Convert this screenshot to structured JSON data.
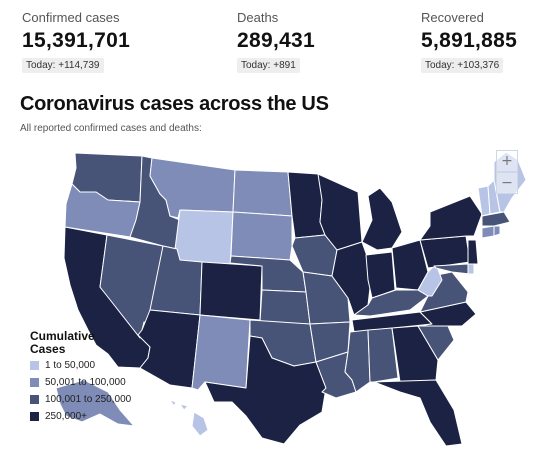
{
  "stats": [
    {
      "label": "Confirmed cases",
      "value": "15,391,701",
      "today": "Today: +114,739"
    },
    {
      "label": "Deaths",
      "value": "289,431",
      "today": "Today: +891"
    },
    {
      "label": "Recovered",
      "value": "5,891,885",
      "today": "Today: +103,376"
    }
  ],
  "map": {
    "title": "Coronavirus cases across the US",
    "subtitle": "All reported confirmed cases and deaths:",
    "zoom_in": "+",
    "zoom_out": "−"
  },
  "legend": {
    "title": "Cumulative\nCases",
    "items": [
      {
        "label": "1 to 50,000",
        "color": "#b7c4e6"
      },
      {
        "label": "50,001 to 100,000",
        "color": "#7e8cb7"
      },
      {
        "label": "100,001 to 250,000",
        "color": "#475478"
      },
      {
        "label": "250,000+",
        "color": "#1b2244"
      }
    ]
  },
  "states": [
    {
      "name": "WA",
      "tier": 3
    },
    {
      "name": "OR",
      "tier": 2
    },
    {
      "name": "CA",
      "tier": 4
    },
    {
      "name": "NV",
      "tier": 3
    },
    {
      "name": "ID",
      "tier": 3
    },
    {
      "name": "MT",
      "tier": 2
    },
    {
      "name": "WY",
      "tier": 1
    },
    {
      "name": "UT",
      "tier": 3
    },
    {
      "name": "AZ",
      "tier": 4
    },
    {
      "name": "CO",
      "tier": 4
    },
    {
      "name": "NM",
      "tier": 2
    },
    {
      "name": "ND",
      "tier": 2
    },
    {
      "name": "SD",
      "tier": 2
    },
    {
      "name": "NE",
      "tier": 3
    },
    {
      "name": "KS",
      "tier": 3
    },
    {
      "name": "OK",
      "tier": 3
    },
    {
      "name": "TX",
      "tier": 4
    },
    {
      "name": "MN",
      "tier": 4
    },
    {
      "name": "IA",
      "tier": 3
    },
    {
      "name": "MO",
      "tier": 3
    },
    {
      "name": "AR",
      "tier": 3
    },
    {
      "name": "LA",
      "tier": 3
    },
    {
      "name": "WI",
      "tier": 4
    },
    {
      "name": "IL",
      "tier": 4
    },
    {
      "name": "MI",
      "tier": 4
    },
    {
      "name": "IN",
      "tier": 4
    },
    {
      "name": "OH",
      "tier": 4
    },
    {
      "name": "KY",
      "tier": 3
    },
    {
      "name": "TN",
      "tier": 4
    },
    {
      "name": "MS",
      "tier": 3
    },
    {
      "name": "AL",
      "tier": 3
    },
    {
      "name": "GA",
      "tier": 4
    },
    {
      "name": "FL",
      "tier": 4
    },
    {
      "name": "SC",
      "tier": 3
    },
    {
      "name": "NC",
      "tier": 4
    },
    {
      "name": "VA",
      "tier": 3
    },
    {
      "name": "WV",
      "tier": 1
    },
    {
      "name": "PA",
      "tier": 4
    },
    {
      "name": "NY",
      "tier": 4
    },
    {
      "name": "NJ",
      "tier": 4
    },
    {
      "name": "MD",
      "tier": 3
    },
    {
      "name": "DE",
      "tier": 1
    },
    {
      "name": "CT",
      "tier": 2
    },
    {
      "name": "MA",
      "tier": 3
    },
    {
      "name": "RI",
      "tier": 2
    },
    {
      "name": "VT",
      "tier": 1
    },
    {
      "name": "NH",
      "tier": 1
    },
    {
      "name": "ME",
      "tier": 1
    },
    {
      "name": "AK",
      "tier": 2
    },
    {
      "name": "HI",
      "tier": 1
    }
  ]
}
